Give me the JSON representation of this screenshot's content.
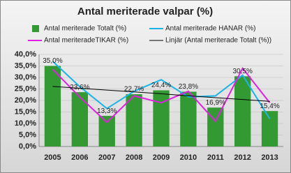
{
  "chart_data": {
    "type": "bar",
    "title": "Antal meriterade valpar (%)",
    "categories": [
      "2005",
      "2006",
      "2007",
      "2008",
      "2009",
      "2010",
      "2011",
      "2012",
      "2013"
    ],
    "series": [
      {
        "name": "Antal meriterade Totalt (%)",
        "type": "bar",
        "color": "#339933",
        "values": [
          35.0,
          23.6,
          13.3,
          22.7,
          24.4,
          23.8,
          16.9,
          30.5,
          15.4
        ],
        "value_labels": [
          "35,0%",
          "23,6%",
          "13,3%",
          "22,7%",
          "24,4%",
          "23,8%",
          "16,9%",
          "30,5%",
          "15,4%"
        ]
      },
      {
        "name": "Antal meriterade HANAR (%)",
        "type": "line",
        "color": "#1ab4e8",
        "values": [
          37,
          26,
          16.5,
          24,
          29,
          21.5,
          22,
          31,
          12
        ]
      },
      {
        "name": "Antal meriteradeTIKAR (%)",
        "type": "line",
        "color": "#e020e0",
        "values": [
          33.5,
          21.5,
          10.5,
          22,
          19,
          24,
          11,
          34,
          19
        ]
      },
      {
        "name": "Linjär (Antal meriterade Totalt (%))",
        "type": "line",
        "color": "#000000",
        "values": [
          26.1,
          25.3,
          24.5,
          23.7,
          22.9,
          22.0,
          21.2,
          20.4,
          19.6
        ]
      }
    ],
    "ylim": [
      0,
      40
    ],
    "yticks": [
      {
        "value": 0,
        "label": "0,0%"
      },
      {
        "value": 5,
        "label": "5,0%"
      },
      {
        "value": 10,
        "label": "10,0%"
      },
      {
        "value": 15,
        "label": "15,0%"
      },
      {
        "value": 20,
        "label": "20,0%"
      },
      {
        "value": 25,
        "label": "25,0%"
      },
      {
        "value": 30,
        "label": "30,0%"
      },
      {
        "value": 35,
        "label": "35,0%"
      },
      {
        "value": 40,
        "label": "40,0%"
      }
    ],
    "grid": true
  }
}
